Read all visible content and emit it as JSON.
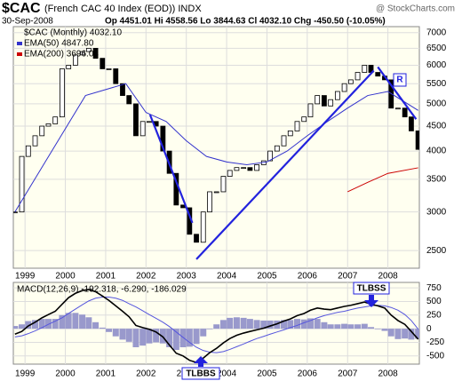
{
  "chart_data": [
    {
      "type": "candlestick",
      "title": "$CAC",
      "subtitle": "(French CAC 40 Index (EOD)) INDX",
      "date": "30-Sep-2008",
      "quote": "Op 4451.01 Hi 4558.56 Lo 3844.63 Cl 4032.10 Chg -450.50 (-10.05%)",
      "source": "@ StockCharts.com",
      "log_scale": true,
      "grid": true,
      "legend": "top-left",
      "xlim": [
        1998.71,
        2008.78
      ],
      "xticks": [
        1999,
        2000,
        2001,
        2002,
        2003,
        2004,
        2005,
        2006,
        2007,
        2008
      ],
      "ylim": [
        2300,
        7200
      ],
      "yticks": [
        2500,
        3000,
        3500,
        4000,
        4500,
        5000,
        5500,
        6000,
        6500,
        7000
      ],
      "series": [
        {
          "name": "$CAC (Monthly) 4032.10",
          "color": "#000000",
          "type": "candlestick",
          "x": [
            1998.75,
            1998.92,
            1999.08,
            1999.25,
            1999.42,
            1999.58,
            1999.75,
            1999.92,
            2000.08,
            2000.25,
            2000.42,
            2000.58,
            2000.75,
            2000.92,
            2001.08,
            2001.25,
            2001.42,
            2001.58,
            2001.75,
            2001.92,
            2002.08,
            2002.25,
            2002.42,
            2002.58,
            2002.75,
            2002.92,
            2003.08,
            2003.25,
            2003.42,
            2003.58,
            2003.75,
            2003.92,
            2004.08,
            2004.25,
            2004.42,
            2004.58,
            2004.75,
            2004.92,
            2005.08,
            2005.25,
            2005.42,
            2005.58,
            2005.75,
            2005.92,
            2006.08,
            2006.25,
            2006.42,
            2006.58,
            2006.75,
            2006.92,
            2007.08,
            2007.25,
            2007.42,
            2007.58,
            2007.75,
            2007.92,
            2008.08,
            2008.25,
            2008.42,
            2008.58,
            2008.75
          ],
          "values": [
            3000,
            3900,
            4100,
            4300,
            4500,
            4550,
            4700,
            5900,
            6000,
            6300,
            6400,
            6500,
            6200,
            5900,
            5900,
            5500,
            5200,
            5000,
            4300,
            4600,
            4600,
            4500,
            4000,
            3600,
            3100,
            3060,
            2700,
            2600,
            3000,
            3300,
            3300,
            3550,
            3650,
            3700,
            3700,
            3650,
            3750,
            3820,
            4000,
            4100,
            4300,
            4400,
            4600,
            4700,
            5000,
            5200,
            4950,
            5100,
            5300,
            5500,
            5600,
            5800,
            6000,
            5800,
            5700,
            5600,
            4900,
            4900,
            4700,
            4400,
            4032.1
          ]
        },
        {
          "name": "EMA(50) 4847.80",
          "color": "#3333cc",
          "type": "line",
          "x": [
            1998.75,
            1999.5,
            2000.5,
            2001.5,
            2002.0,
            2002.5,
            2003.0,
            2003.5,
            2004.0,
            2004.5,
            2005.0,
            2005.5,
            2006.0,
            2006.5,
            2007.0,
            2007.5,
            2008.0,
            2008.75
          ],
          "values": [
            3000,
            3800,
            5200,
            5500,
            4800,
            4600,
            4200,
            3900,
            3800,
            3750,
            3800,
            4000,
            4300,
            4600,
            4900,
            5200,
            5300,
            4847.8
          ]
        },
        {
          "name": "EMA(200) 3696.04",
          "color": "#cc0000",
          "type": "line",
          "x": [
            2007.0,
            2007.5,
            2008.0,
            2008.75
          ],
          "values": [
            3300,
            3450,
            3600,
            3696.04
          ]
        }
      ],
      "trendlines": [
        {
          "x": [
            2002.1,
            2003.15
          ],
          "y": [
            4750,
            2850
          ]
        },
        {
          "x": [
            2003.25,
            2007.65
          ],
          "y": [
            2400,
            5850
          ]
        },
        {
          "x": [
            2007.75,
            2008.7
          ],
          "y": [
            5950,
            4650
          ]
        }
      ],
      "annotations": [
        "R"
      ]
    },
    {
      "type": "line",
      "title": "MACD(12,26,9) -192.318, -6.290, -186.029",
      "grid": true,
      "xlim": [
        1998.71,
        2008.78
      ],
      "xticks": [
        1999,
        2000,
        2001,
        2002,
        2003,
        2004,
        2005,
        2006,
        2007,
        2008
      ],
      "ylim": [
        -650,
        850
      ],
      "yticks": [
        750,
        500,
        250,
        0,
        -250,
        -500
      ],
      "series": [
        {
          "color": "#9999cc",
          "type": "bar",
          "x": [
            1998.75,
            1998.92,
            1999.08,
            1999.25,
            1999.42,
            1999.58,
            1999.75,
            1999.92,
            2000.08,
            2000.25,
            2000.42,
            2000.58,
            2000.75,
            2000.92,
            2001.08,
            2001.25,
            2001.42,
            2001.58,
            2001.75,
            2001.92,
            2002.08,
            2002.25,
            2002.42,
            2002.58,
            2002.75,
            2002.92,
            2003.08,
            2003.25,
            2003.42,
            2003.58,
            2003.75,
            2003.92,
            2004.08,
            2004.25,
            2004.42,
            2004.58,
            2004.75,
            2004.92,
            2005.08,
            2005.25,
            2005.42,
            2005.58,
            2005.75,
            2005.92,
            2006.08,
            2006.25,
            2006.42,
            2006.58,
            2006.75,
            2006.92,
            2007.08,
            2007.25,
            2007.42,
            2007.58,
            2007.75,
            2007.92,
            2008.08,
            2008.25,
            2008.42,
            2008.58,
            2008.75
          ],
          "values": [
            50,
            80,
            140,
            160,
            180,
            180,
            180,
            250,
            290,
            290,
            260,
            210,
            120,
            20,
            -60,
            -140,
            -200,
            -240,
            -340,
            -310,
            -270,
            -250,
            -270,
            -340,
            -390,
            -340,
            -330,
            -280,
            -140,
            -10,
            80,
            160,
            200,
            210,
            200,
            180,
            160,
            150,
            150,
            150,
            160,
            160,
            180,
            170,
            190,
            180,
            120,
            80,
            80,
            90,
            80,
            80,
            90,
            30,
            -10,
            -40,
            -140,
            -190,
            -180,
            -200,
            -186.029
          ]
        },
        {
          "color": "#5555dd",
          "type": "line",
          "x": [
            1998.75,
            1998.92,
            1999.08,
            1999.25,
            1999.42,
            1999.58,
            1999.75,
            1999.92,
            2000.08,
            2000.25,
            2000.42,
            2000.58,
            2000.75,
            2000.92,
            2001.08,
            2001.25,
            2001.42,
            2001.58,
            2001.75,
            2001.92,
            2002.08,
            2002.25,
            2002.42,
            2002.58,
            2002.75,
            2002.92,
            2003.08,
            2003.25,
            2003.42,
            2003.58,
            2003.75,
            2003.92,
            2004.08,
            2004.25,
            2004.42,
            2004.58,
            2004.75,
            2004.92,
            2005.08,
            2005.25,
            2005.42,
            2005.58,
            2005.75,
            2005.92,
            2006.08,
            2006.25,
            2006.42,
            2006.58,
            2006.75,
            2006.92,
            2007.08,
            2007.25,
            2007.42,
            2007.58,
            2007.75,
            2007.92,
            2008.08,
            2008.25,
            2008.42,
            2008.58,
            2008.75
          ],
          "values": [
            -150,
            -130,
            -90,
            -40,
            20,
            80,
            140,
            200,
            280,
            360,
            440,
            510,
            560,
            580,
            580,
            560,
            520,
            460,
            400,
            330,
            260,
            190,
            120,
            40,
            -60,
            -160,
            -250,
            -340,
            -400,
            -430,
            -440,
            -420,
            -380,
            -330,
            -280,
            -230,
            -180,
            -140,
            -100,
            -60,
            -20,
            20,
            60,
            110,
            150,
            200,
            240,
            270,
            300,
            320,
            350,
            380,
            400,
            420,
            430,
            420,
            390,
            340,
            260,
            150,
            -6.29
          ]
        },
        {
          "color": "#000000",
          "type": "line",
          "x": [
            1998.75,
            1998.92,
            1999.08,
            1999.25,
            1999.42,
            1999.58,
            1999.75,
            1999.92,
            2000.08,
            2000.25,
            2000.42,
            2000.58,
            2000.75,
            2000.92,
            2001.08,
            2001.25,
            2001.42,
            2001.58,
            2001.75,
            2001.92,
            2002.08,
            2002.25,
            2002.42,
            2002.58,
            2002.75,
            2002.92,
            2003.08,
            2003.25,
            2003.42,
            2003.58,
            2003.75,
            2003.92,
            2004.08,
            2004.25,
            2004.42,
            2004.58,
            2004.75,
            2004.92,
            2005.08,
            2005.25,
            2005.42,
            2005.58,
            2005.75,
            2005.92,
            2006.08,
            2006.25,
            2006.42,
            2006.58,
            2006.75,
            2006.92,
            2007.08,
            2007.25,
            2007.42,
            2007.58,
            2007.75,
            2007.92,
            2008.08,
            2008.25,
            2008.42,
            2008.58,
            2008.75
          ],
          "values": [
            -100,
            -50,
            50,
            120,
            200,
            260,
            320,
            450,
            570,
            650,
            700,
            720,
            680,
            600,
            520,
            420,
            320,
            220,
            60,
            20,
            -10,
            -60,
            -150,
            -300,
            -450,
            -500,
            -580,
            -620,
            -540,
            -440,
            -360,
            -260,
            -180,
            -120,
            -80,
            -50,
            -20,
            10,
            50,
            90,
            140,
            180,
            240,
            280,
            340,
            380,
            360,
            350,
            380,
            410,
            430,
            460,
            490,
            450,
            420,
            380,
            250,
            150,
            80,
            -50,
            -192.318
          ]
        }
      ],
      "annotations": [
        "TLBSS",
        "TLBBS"
      ]
    }
  ]
}
